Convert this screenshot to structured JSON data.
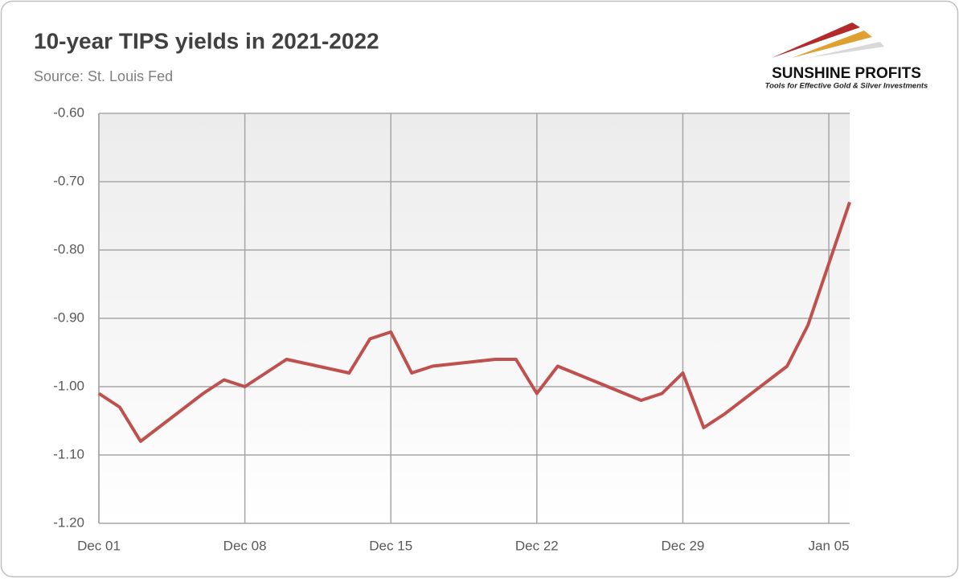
{
  "chart_data": {
    "type": "line",
    "title": "10-year TIPS yields in 2021-2022",
    "subtitle": "Source: St. Louis Fed",
    "logo": {
      "name": "SUNSHINE PROFITS",
      "tagline": "Tools for Effective Gold & Silver Investments"
    },
    "x": [
      "2021-12-01",
      "2021-12-02",
      "2021-12-03",
      "2021-12-06",
      "2021-12-07",
      "2021-12-08",
      "2021-12-09",
      "2021-12-10",
      "2021-12-13",
      "2021-12-14",
      "2021-12-15",
      "2021-12-16",
      "2021-12-17",
      "2021-12-20",
      "2021-12-21",
      "2021-12-22",
      "2021-12-23",
      "2021-12-27",
      "2021-12-28",
      "2021-12-29",
      "2021-12-30",
      "2021-12-31",
      "2022-01-03",
      "2022-01-04",
      "2022-01-05",
      "2022-01-06"
    ],
    "series": [
      {
        "name": "10-year TIPS yield",
        "color": "#c0504d",
        "values": [
          -1.01,
          -1.03,
          -1.08,
          -1.01,
          -0.99,
          -1.0,
          -0.98,
          -0.96,
          -0.98,
          -0.93,
          -0.92,
          -0.98,
          -0.97,
          -0.96,
          -0.96,
          -1.01,
          -0.97,
          -1.02,
          -1.01,
          -0.98,
          -1.06,
          -1.04,
          -0.97,
          -0.91,
          -0.82,
          -0.73
        ]
      }
    ],
    "xlim": [
      "2021-12-01",
      "2022-01-06"
    ],
    "xticks": [
      {
        "value": "2021-12-01",
        "label": "Dec 01"
      },
      {
        "value": "2021-12-08",
        "label": "Dec 08"
      },
      {
        "value": "2021-12-15",
        "label": "Dec 15"
      },
      {
        "value": "2021-12-22",
        "label": "Dec 22"
      },
      {
        "value": "2021-12-29",
        "label": "Dec 29"
      },
      {
        "value": "2022-01-05",
        "label": "Jan 05"
      }
    ],
    "ylim": [
      -1.2,
      -0.6
    ],
    "yticks": [
      {
        "value": -1.2,
        "label": "-1.20"
      },
      {
        "value": -1.1,
        "label": "-1.10"
      },
      {
        "value": -1.0,
        "label": "-1.00"
      },
      {
        "value": -0.9,
        "label": "-0.90"
      },
      {
        "value": -0.8,
        "label": "-0.80"
      },
      {
        "value": -0.7,
        "label": "-0.70"
      },
      {
        "value": -0.6,
        "label": "-0.60"
      }
    ],
    "grid": true
  }
}
